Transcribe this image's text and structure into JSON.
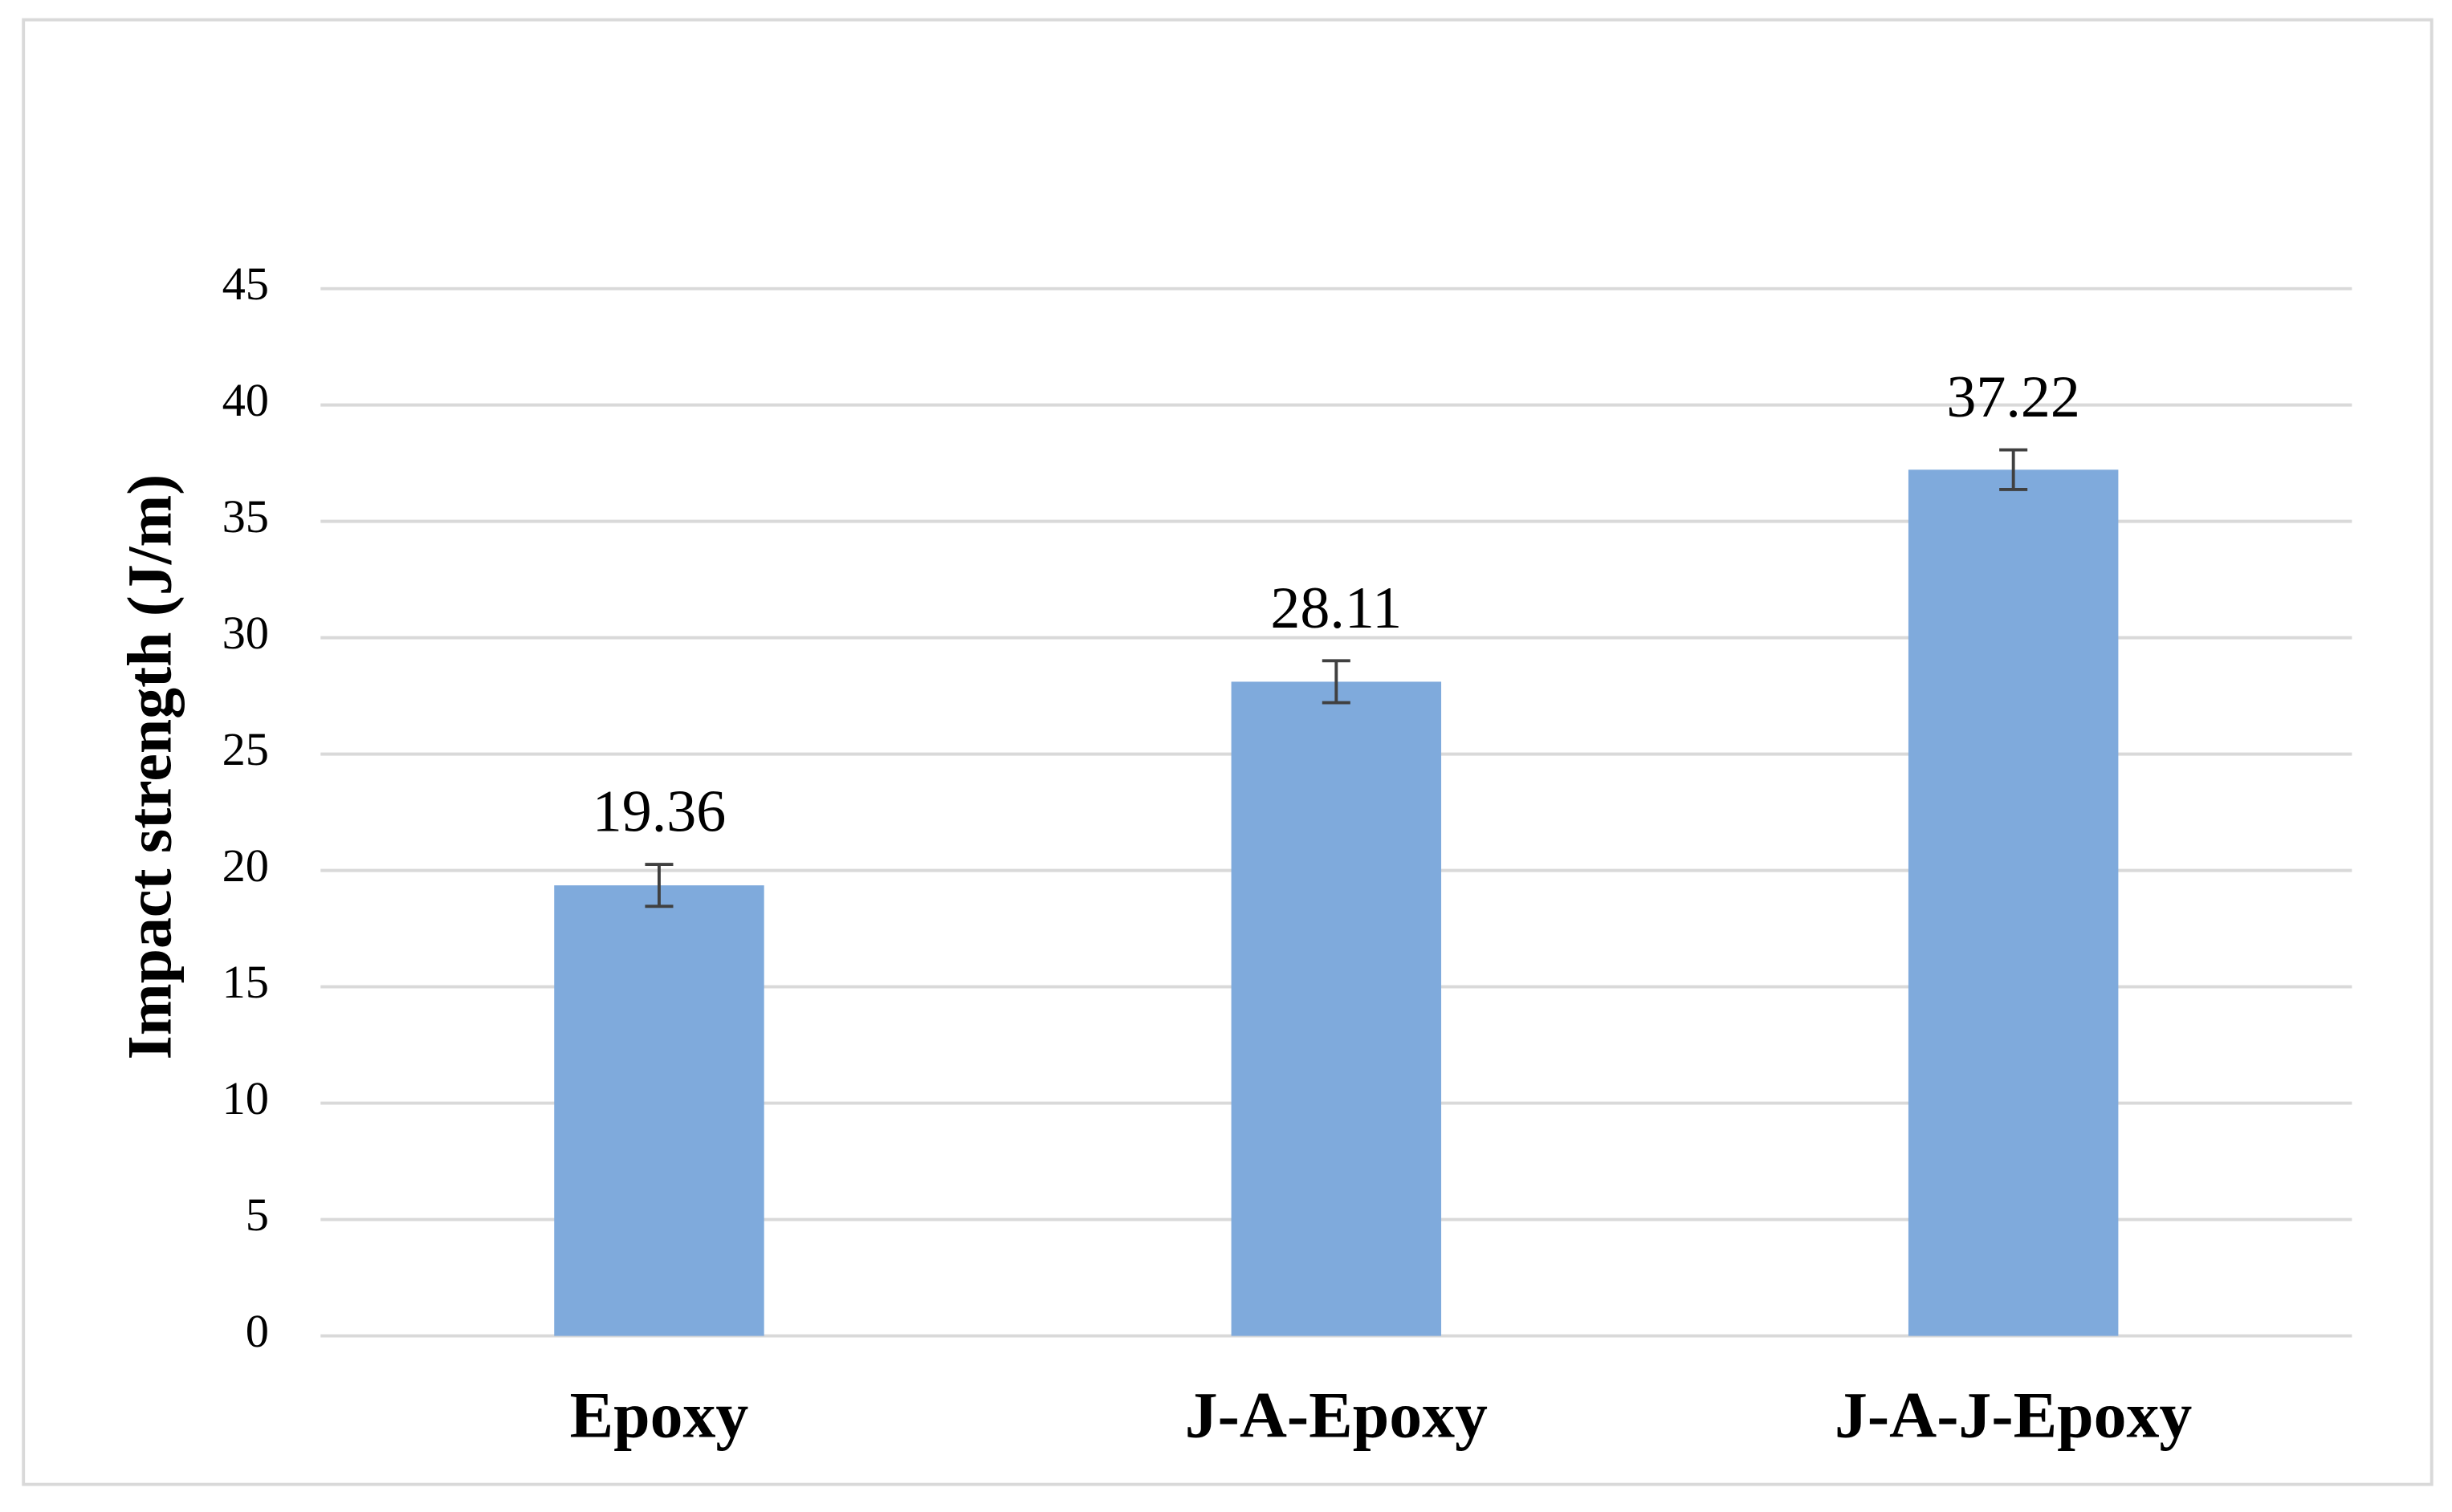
{
  "chart_data": {
    "type": "bar",
    "y_label": "Impact strength (J/m)",
    "categories": [
      "Epoxy",
      "J-A-Epoxy",
      "J-A-J-Epoxy"
    ],
    "values": [
      19.36,
      28.11,
      37.22
    ],
    "errors": [
      0.9,
      0.9,
      0.85
    ],
    "color": "#7faadc",
    "ylim": [
      0,
      45
    ],
    "yticks": [
      0,
      5,
      10,
      15,
      20,
      25,
      30,
      35,
      40,
      45
    ],
    "grid": true
  }
}
